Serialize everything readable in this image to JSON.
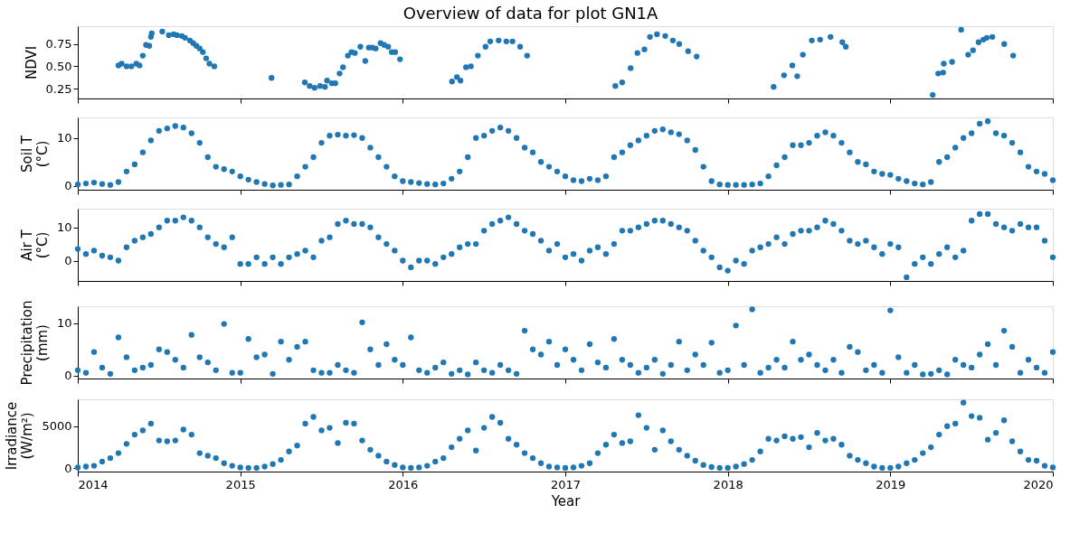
{
  "chart_data": [
    {
      "type": "scatter",
      "title": "Overview of data for plot GN1A",
      "ylabel": "NDVI",
      "marker": "circle",
      "grid": false,
      "tick_labels": "y",
      "x": [
        2014.25,
        2014.27,
        2014.3,
        2014.33,
        2014.36,
        2014.38,
        2014.4,
        2014.42,
        2014.44,
        2014.45,
        2014.455,
        2014.52,
        2014.56,
        2014.59,
        2014.61,
        2014.64,
        2014.66,
        2014.69,
        2014.71,
        2014.73,
        2014.75,
        2014.77,
        2014.79,
        2014.81,
        2014.84,
        2015.192,
        2015.397,
        2015.427,
        2015.457,
        2015.491,
        2015.521,
        2015.534,
        2015.564,
        2015.585,
        2015.611,
        2015.632,
        2015.662,
        2015.684,
        2015.705,
        2015.739,
        2015.769,
        2015.791,
        2015.812,
        2015.833,
        2015.863,
        2015.885,
        2015.91,
        2015.932,
        2015.953,
        2015.983,
        2016.303,
        2016.333,
        2016.355,
        2016.389,
        2016.419,
        2016.462,
        2016.509,
        2016.538,
        2016.59,
        2016.637,
        2016.675,
        2016.722,
        2016.765,
        2017.308,
        2017.35,
        2017.402,
        2017.444,
        2017.487,
        2017.521,
        2017.564,
        2017.615,
        2017.662,
        2017.701,
        2017.756,
        2017.808,
        2018.282,
        2018.346,
        2018.397,
        2018.427,
        2018.462,
        2018.517,
        2018.568,
        2018.632,
        2018.705,
        2018.726,
        2019.261,
        2019.295,
        2019.325,
        2019.329,
        2019.38,
        2019.436,
        2019.479,
        2019.509,
        2019.543,
        2019.573,
        2019.594,
        2019.628,
        2019.701,
        2019.756
      ],
      "series": [
        {
          "color": "#1f77b4",
          "values": [
            0.51,
            0.53,
            0.5,
            0.5,
            0.53,
            0.51,
            0.62,
            0.74,
            0.73,
            0.83,
            0.87,
            0.89,
            0.85,
            0.86,
            0.85,
            0.84,
            0.82,
            0.79,
            0.76,
            0.73,
            0.7,
            0.66,
            0.59,
            0.53,
            0.5,
            0.37,
            0.32,
            0.28,
            0.26,
            0.28,
            0.27,
            0.34,
            0.31,
            0.31,
            0.42,
            0.49,
            0.62,
            0.66,
            0.65,
            0.72,
            0.56,
            0.71,
            0.71,
            0.7,
            0.76,
            0.74,
            0.72,
            0.66,
            0.66,
            0.58,
            0.33,
            0.38,
            0.34,
            0.49,
            0.5,
            0.62,
            0.72,
            0.78,
            0.79,
            0.78,
            0.78,
            0.72,
            0.62,
            0.28,
            0.32,
            0.48,
            0.65,
            0.69,
            0.83,
            0.86,
            0.84,
            0.79,
            0.75,
            0.67,
            0.61,
            0.27,
            0.4,
            0.51,
            0.39,
            0.63,
            0.79,
            0.8,
            0.83,
            0.77,
            0.72,
            0.18,
            0.42,
            0.43,
            0.53,
            0.55,
            0.91,
            0.63,
            0.68,
            0.77,
            0.8,
            0.82,
            0.83,
            0.75,
            0.62
          ]
        }
      ],
      "xlim": [
        2014,
        2020
      ],
      "xticks": [
        2014,
        2015,
        2016,
        2017,
        2018,
        2019,
        2020
      ],
      "ylim": [
        0.14,
        0.95
      ],
      "yticks": [
        0.25,
        {
          "value": 0.5,
          "label": "0.50"
        },
        0.75
      ]
    },
    {
      "type": "scatter",
      "ylabel": "Soil T\n(°C)",
      "marker": "circle",
      "grid": false,
      "tick_labels": "y",
      "x": [
        2014,
        2014.05,
        2014.1,
        2014.15,
        2014.2,
        2014.25,
        2014.3,
        2014.35,
        2014.4,
        2014.45,
        2014.5,
        2014.55,
        2014.6,
        2014.65,
        2014.7,
        2014.75,
        2014.8,
        2014.85,
        2014.9,
        2014.95,
        2015,
        2015.05,
        2015.1,
        2015.15,
        2015.2,
        2015.25,
        2015.3,
        2015.35,
        2015.4,
        2015.45,
        2015.5,
        2015.55,
        2015.6,
        2015.65,
        2015.7,
        2015.75,
        2015.8,
        2015.85,
        2015.9,
        2015.95,
        2016,
        2016.05,
        2016.1,
        2016.15,
        2016.2,
        2016.25,
        2016.3,
        2016.35,
        2016.4,
        2016.45,
        2016.5,
        2016.55,
        2016.6,
        2016.65,
        2016.7,
        2016.75,
        2016.8,
        2016.85,
        2016.9,
        2016.95,
        2017,
        2017.05,
        2017.1,
        2017.15,
        2017.2,
        2017.25,
        2017.3,
        2017.35,
        2017.4,
        2017.45,
        2017.5,
        2017.55,
        2017.6,
        2017.65,
        2017.7,
        2017.75,
        2017.8,
        2017.85,
        2017.9,
        2017.95,
        2018,
        2018.05,
        2018.1,
        2018.15,
        2018.2,
        2018.25,
        2018.3,
        2018.35,
        2018.4,
        2018.45,
        2018.5,
        2018.55,
        2018.6,
        2018.65,
        2018.7,
        2018.75,
        2018.8,
        2018.85,
        2018.9,
        2018.95,
        2019,
        2019.05,
        2019.1,
        2019.15,
        2019.2,
        2019.25,
        2019.3,
        2019.35,
        2019.4,
        2019.45,
        2019.5,
        2019.55,
        2019.6,
        2019.65,
        2019.7,
        2019.75,
        2019.8,
        2019.85,
        2019.9,
        2019.95,
        2020
      ],
      "series": [
        {
          "color": "#1f77b4",
          "values": [
            0.3,
            0.5,
            0.7,
            0.4,
            0.2,
            0.8,
            3,
            4.5,
            7,
            9.5,
            11.5,
            12,
            12.5,
            12.2,
            11,
            9,
            6,
            4,
            3.5,
            3,
            2,
            1.3,
            0.8,
            0.4,
            0.1,
            0.2,
            0.3,
            2,
            4,
            6,
            9,
            10.5,
            10.7,
            10.5,
            10.6,
            10,
            8,
            6,
            4,
            2,
            1,
            0.8,
            0.6,
            0.4,
            0.3,
            0.5,
            1.5,
            3,
            6,
            10,
            10.5,
            11.5,
            12.2,
            11.5,
            10,
            8,
            7,
            5,
            4,
            3,
            2,
            1.2,
            1,
            1.5,
            1.2,
            2,
            6,
            7,
            8.5,
            9.5,
            10.5,
            11.5,
            11.8,
            11.2,
            10.8,
            9.5,
            7.5,
            4,
            1,
            0.3,
            0.2,
            0.2,
            0.2,
            0.3,
            0.5,
            2,
            4.3,
            6,
            8.5,
            8.5,
            9,
            10.5,
            11.2,
            10.5,
            9,
            7,
            5,
            4.5,
            3,
            2.5,
            2.3,
            1.5,
            1,
            0.5,
            0.3,
            0.8,
            5,
            6,
            8,
            10,
            11,
            13,
            13.5,
            11,
            10.5,
            9,
            7,
            4,
            3,
            2.5,
            1.2
          ]
        }
      ],
      "xlim": [
        2014,
        2020
      ],
      "xticks": [
        2014,
        2015,
        2016,
        2017,
        2018,
        2019,
        2020
      ],
      "ylim": [
        -0.8,
        14.3
      ],
      "yticks": [
        0,
        10
      ]
    },
    {
      "type": "scatter",
      "ylabel": "Air T\n(°C)",
      "marker": "circle",
      "grid": false,
      "tick_labels": "y",
      "x": [
        2014,
        2014.05,
        2014.1,
        2014.15,
        2014.2,
        2014.25,
        2014.3,
        2014.35,
        2014.4,
        2014.45,
        2014.5,
        2014.55,
        2014.6,
        2014.65,
        2014.7,
        2014.75,
        2014.8,
        2014.85,
        2014.9,
        2014.95,
        2015,
        2015.05,
        2015.1,
        2015.15,
        2015.2,
        2015.25,
        2015.3,
        2015.35,
        2015.4,
        2015.45,
        2015.5,
        2015.55,
        2015.6,
        2015.65,
        2015.7,
        2015.75,
        2015.8,
        2015.85,
        2015.9,
        2015.95,
        2016,
        2016.05,
        2016.1,
        2016.15,
        2016.2,
        2016.25,
        2016.3,
        2016.35,
        2016.4,
        2016.45,
        2016.5,
        2016.55,
        2016.6,
        2016.65,
        2016.7,
        2016.75,
        2016.8,
        2016.85,
        2016.9,
        2016.95,
        2017,
        2017.05,
        2017.1,
        2017.15,
        2017.2,
        2017.25,
        2017.3,
        2017.35,
        2017.4,
        2017.45,
        2017.5,
        2017.55,
        2017.6,
        2017.65,
        2017.7,
        2017.75,
        2017.8,
        2017.85,
        2017.9,
        2017.95,
        2018,
        2018.05,
        2018.1,
        2018.15,
        2018.2,
        2018.25,
        2018.3,
        2018.35,
        2018.4,
        2018.45,
        2018.5,
        2018.55,
        2018.6,
        2018.65,
        2018.7,
        2018.75,
        2018.8,
        2018.85,
        2018.9,
        2018.95,
        2019,
        2019.05,
        2019.1,
        2019.15,
        2019.2,
        2019.25,
        2019.3,
        2019.35,
        2019.4,
        2019.45,
        2019.5,
        2019.55,
        2019.6,
        2019.65,
        2019.7,
        2019.75,
        2019.8,
        2019.85,
        2019.9,
        2019.95,
        2020
      ],
      "series": [
        {
          "color": "#1f77b4",
          "values": [
            3.5,
            2,
            3,
            1.5,
            1,
            0,
            4,
            6,
            7,
            8,
            10,
            12,
            12,
            13,
            12,
            10,
            7,
            5,
            4,
            7,
            -1,
            -1,
            1,
            -1,
            1,
            -1,
            1,
            2,
            3,
            1,
            6,
            7,
            11,
            12,
            11,
            11,
            10,
            7,
            5,
            3,
            0,
            -2,
            0,
            0,
            -1,
            1,
            2,
            4,
            5,
            5,
            9,
            11,
            12,
            13,
            11,
            9,
            8,
            6,
            3,
            5,
            1,
            2,
            0,
            3,
            4,
            2,
            5,
            9,
            9,
            10,
            11,
            12,
            12,
            11,
            10,
            9,
            6,
            3,
            1,
            -2,
            -3,
            0,
            -1,
            3,
            4,
            5,
            7,
            5,
            8,
            9,
            9,
            10,
            12,
            11,
            9,
            6,
            5,
            6,
            4,
            2,
            5,
            4,
            -5,
            -1,
            1,
            -1,
            2,
            4,
            1,
            3,
            12,
            14,
            14,
            11,
            10,
            9,
            11,
            10,
            10,
            6,
            1
          ]
        }
      ],
      "xlim": [
        2014,
        2020
      ],
      "xticks": [
        2014,
        2015,
        2016,
        2017,
        2018,
        2019,
        2020
      ],
      "ylim": [
        -6.1,
        15.6
      ],
      "yticks": [
        0,
        10
      ]
    },
    {
      "type": "scatter",
      "ylabel": "Precipitation\n(mm)",
      "marker": "circle",
      "grid": false,
      "tick_labels": "y",
      "x": [
        2014,
        2014.05,
        2014.1,
        2014.15,
        2014.2,
        2014.25,
        2014.3,
        2014.35,
        2014.4,
        2014.45,
        2014.5,
        2014.55,
        2014.6,
        2014.65,
        2014.7,
        2014.75,
        2014.8,
        2014.85,
        2014.9,
        2014.95,
        2015,
        2015.05,
        2015.1,
        2015.15,
        2015.2,
        2015.25,
        2015.3,
        2015.35,
        2015.4,
        2015.45,
        2015.5,
        2015.55,
        2015.6,
        2015.65,
        2015.7,
        2015.75,
        2015.8,
        2015.85,
        2015.9,
        2015.95,
        2016,
        2016.05,
        2016.1,
        2016.15,
        2016.2,
        2016.25,
        2016.3,
        2016.35,
        2016.4,
        2016.45,
        2016.5,
        2016.55,
        2016.6,
        2016.65,
        2016.7,
        2016.75,
        2016.8,
        2016.85,
        2016.9,
        2016.95,
        2017,
        2017.05,
        2017.1,
        2017.15,
        2017.2,
        2017.25,
        2017.3,
        2017.35,
        2017.4,
        2017.45,
        2017.5,
        2017.55,
        2017.6,
        2017.65,
        2017.7,
        2017.75,
        2017.8,
        2017.85,
        2017.9,
        2017.95,
        2018,
        2018.05,
        2018.1,
        2018.15,
        2018.2,
        2018.25,
        2018.3,
        2018.35,
        2018.4,
        2018.45,
        2018.5,
        2018.55,
        2018.6,
        2018.65,
        2018.7,
        2018.75,
        2018.8,
        2018.85,
        2018.9,
        2018.95,
        2019,
        2019.05,
        2019.1,
        2019.15,
        2019.2,
        2019.25,
        2019.3,
        2019.35,
        2019.4,
        2019.45,
        2019.5,
        2019.55,
        2019.6,
        2019.65,
        2019.7,
        2019.75,
        2019.8,
        2019.85,
        2019.9,
        2019.95,
        2020
      ],
      "series": [
        {
          "color": "#1f77b4",
          "values": [
            1,
            0.5,
            4.5,
            1.5,
            0.3,
            7.3,
            3.5,
            1,
            1.5,
            2,
            5,
            4.5,
            3,
            1.5,
            7.8,
            3.5,
            2.5,
            1,
            9.9,
            0.5,
            0.5,
            7,
            3.5,
            4,
            0.3,
            6.5,
            3,
            5.5,
            6.5,
            1,
            0.5,
            0.5,
            2,
            1,
            0.5,
            10.2,
            5,
            2,
            6,
            3,
            2,
            7.3,
            1,
            0.5,
            1.5,
            2.5,
            0.3,
            1,
            0.2,
            2.5,
            1,
            0.5,
            2,
            1,
            0.3,
            8.6,
            5,
            4,
            6.5,
            2,
            5,
            3,
            1,
            6,
            2.5,
            1.5,
            7,
            3,
            2,
            0.5,
            1.5,
            3,
            0.3,
            2,
            6.5,
            1,
            4,
            2,
            6.3,
            0.5,
            1,
            9.6,
            2,
            12.7,
            0.5,
            1.5,
            3,
            1.5,
            6.5,
            3,
            4,
            2,
            1,
            3,
            0.5,
            5.5,
            4.5,
            1,
            2,
            0.5,
            12.5,
            3.5,
            0.5,
            2,
            0.2,
            0.3,
            1,
            0.2,
            3,
            2,
            1.5,
            4,
            6,
            2,
            8.6,
            5.5,
            0.5,
            3,
            1.5,
            0.5,
            4.5
          ]
        }
      ],
      "xlim": [
        2014,
        2020
      ],
      "xticks": [
        2014,
        2015,
        2016,
        2017,
        2018,
        2019,
        2020
      ],
      "ylim": [
        -0.6,
        13.3
      ],
      "yticks": [
        0,
        10
      ]
    },
    {
      "type": "scatter",
      "xlabel": "Year",
      "ylabel": "Irradiance\n(W/m²)",
      "marker": "circle",
      "grid": false,
      "x": [
        2014,
        2014.05,
        2014.1,
        2014.15,
        2014.2,
        2014.25,
        2014.3,
        2014.35,
        2014.4,
        2014.45,
        2014.5,
        2014.55,
        2014.6,
        2014.65,
        2014.7,
        2014.75,
        2014.8,
        2014.85,
        2014.9,
        2014.95,
        2015,
        2015.05,
        2015.1,
        2015.15,
        2015.2,
        2015.25,
        2015.3,
        2015.35,
        2015.4,
        2015.45,
        2015.5,
        2015.55,
        2015.6,
        2015.65,
        2015.7,
        2015.75,
        2015.8,
        2015.85,
        2015.9,
        2015.95,
        2016,
        2016.05,
        2016.1,
        2016.15,
        2016.2,
        2016.25,
        2016.3,
        2016.35,
        2016.4,
        2016.45,
        2016.5,
        2016.55,
        2016.6,
        2016.65,
        2016.7,
        2016.75,
        2016.8,
        2016.85,
        2016.9,
        2016.95,
        2017,
        2017.05,
        2017.1,
        2017.15,
        2017.2,
        2017.25,
        2017.3,
        2017.35,
        2017.4,
        2017.45,
        2017.5,
        2017.55,
        2017.6,
        2017.65,
        2017.7,
        2017.75,
        2017.8,
        2017.85,
        2017.9,
        2017.95,
        2018,
        2018.05,
        2018.1,
        2018.15,
        2018.2,
        2018.25,
        2018.3,
        2018.35,
        2018.4,
        2018.45,
        2018.5,
        2018.55,
        2018.6,
        2018.65,
        2018.7,
        2018.75,
        2018.8,
        2018.85,
        2018.9,
        2018.95,
        2019,
        2019.05,
        2019.1,
        2019.15,
        2019.2,
        2019.25,
        2019.3,
        2019.35,
        2019.4,
        2019.45,
        2019.5,
        2019.55,
        2019.6,
        2019.65,
        2019.7,
        2019.75,
        2019.8,
        2019.85,
        2019.9,
        2019.95,
        2020
      ],
      "series": [
        {
          "color": "#1f77b4",
          "values": [
            100,
            200,
            300,
            800,
            1200,
            1800,
            2900,
            4000,
            4500,
            5300,
            3300,
            3200,
            3300,
            4600,
            4000,
            1800,
            1500,
            1200,
            600,
            300,
            100,
            50,
            50,
            200,
            500,
            1000,
            2000,
            2700,
            5300,
            6100,
            4500,
            4800,
            3000,
            5400,
            5300,
            3300,
            2200,
            1500,
            800,
            400,
            100,
            50,
            100,
            300,
            800,
            1200,
            2500,
            3500,
            4500,
            2100,
            4800,
            6100,
            5400,
            3500,
            2800,
            1800,
            1200,
            600,
            200,
            100,
            50,
            100,
            300,
            600,
            1800,
            2800,
            4000,
            3000,
            3200,
            6300,
            4800,
            2200,
            4500,
            3200,
            2200,
            1500,
            900,
            400,
            150,
            50,
            50,
            200,
            500,
            1000,
            2000,
            3500,
            3300,
            3800,
            3500,
            3700,
            2500,
            4200,
            3300,
            3500,
            2800,
            1500,
            1000,
            600,
            200,
            50,
            50,
            200,
            600,
            1000,
            1800,
            2500,
            4000,
            5000,
            5300,
            7800,
            6200,
            6000,
            3400,
            4200,
            5700,
            3200,
            2000,
            1000,
            900,
            300,
            100
          ]
        }
      ],
      "xlim": [
        2014,
        2020
      ],
      "xticks": [
        2014,
        2015,
        2016,
        2017,
        2018,
        2019,
        2020
      ],
      "ylim": [
        -390,
        8190
      ],
      "yticks": [
        0,
        5000
      ]
    }
  ]
}
